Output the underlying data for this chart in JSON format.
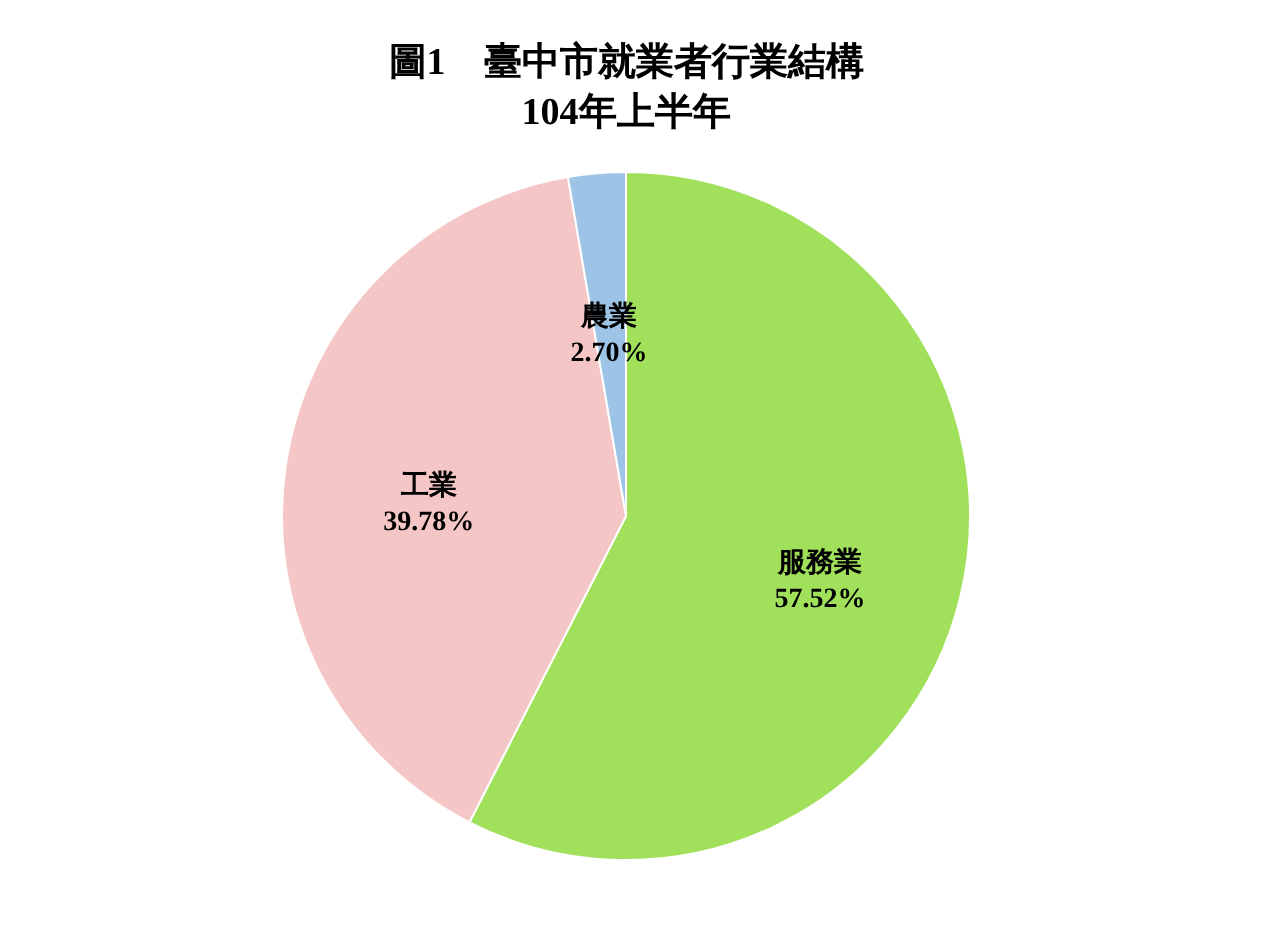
{
  "chart_data": {
    "type": "pie",
    "title": "圖1　臺中市就業者行業結構",
    "subtitle": "104年上半年",
    "categories": [
      "服務業",
      "工業",
      "農業"
    ],
    "values": [
      57.52,
      39.78,
      2.7
    ],
    "colors": [
      "#a0e05a",
      "#f5c6c6",
      "#9dc3e6"
    ],
    "value_labels": [
      "57.52%",
      "39.78%",
      "2.70%"
    ]
  }
}
